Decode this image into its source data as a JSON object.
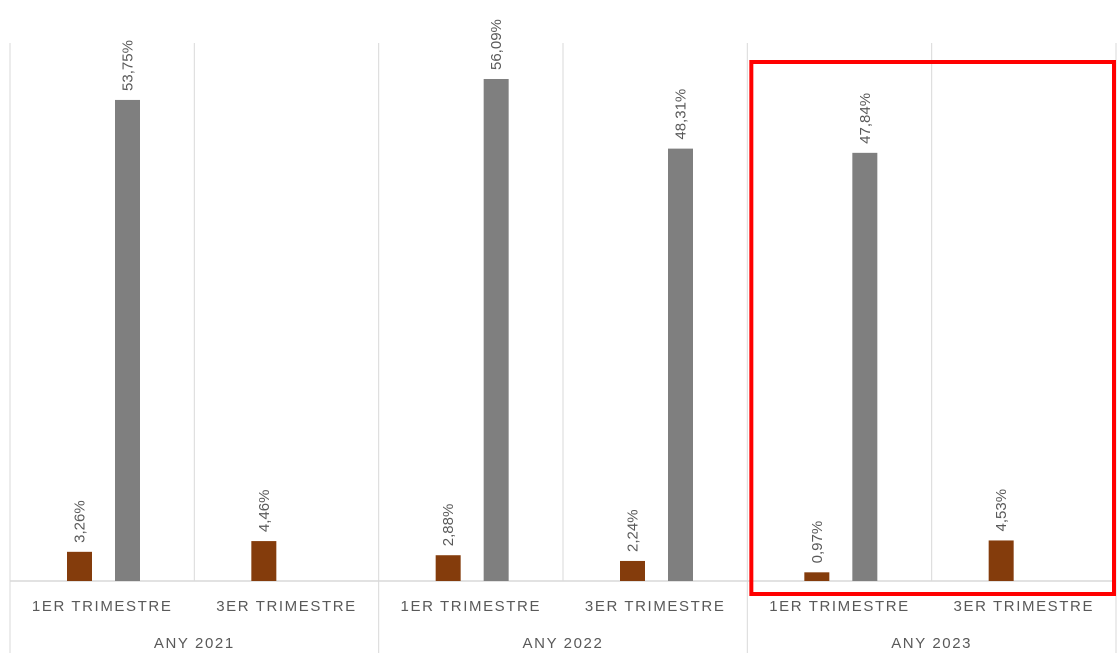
{
  "chart_data": {
    "type": "bar",
    "groups": [
      {
        "year": "ANY 2021",
        "quarters": [
          {
            "label": "1ER TRIMESTRE",
            "bars": [
              {
                "series": "s1",
                "value": 3.26,
                "label": "3,26%"
              },
              {
                "series": "s2",
                "value": 53.75,
                "label": "53,75%"
              }
            ]
          },
          {
            "label": "3ER TRIMESTRE",
            "bars": [
              {
                "series": "s1",
                "value": 4.46,
                "label": "4,46%"
              }
            ]
          }
        ]
      },
      {
        "year": "ANY 2022",
        "quarters": [
          {
            "label": "1ER TRIMESTRE",
            "bars": [
              {
                "series": "s1",
                "value": 2.88,
                "label": "2,88%"
              },
              {
                "series": "s2",
                "value": 56.09,
                "label": "56,09%"
              }
            ]
          },
          {
            "label": "3ER TRIMESTRE",
            "bars": [
              {
                "series": "s1",
                "value": 2.24,
                "label": "2,24%"
              },
              {
                "series": "s2",
                "value": 48.31,
                "label": "48,31%"
              }
            ]
          }
        ]
      },
      {
        "year": "ANY 2023",
        "quarters": [
          {
            "label": "1ER TRIMESTRE",
            "bars": [
              {
                "series": "s1",
                "value": 0.97,
                "label": "0,97%"
              },
              {
                "series": "s2",
                "value": 47.84,
                "label": "47,84%"
              }
            ]
          },
          {
            "label": "3ER TRIMESTRE",
            "bars": [
              {
                "series": "s1",
                "value": 4.53,
                "label": "4,53%"
              }
            ]
          }
        ]
      }
    ],
    "series_colors": {
      "s1": "#843c0c",
      "s2": "#7f7f7f"
    },
    "ylim": [
      0,
      60
    ],
    "highlight_group": "ANY 2023",
    "highlight_color": "#ff0000"
  }
}
